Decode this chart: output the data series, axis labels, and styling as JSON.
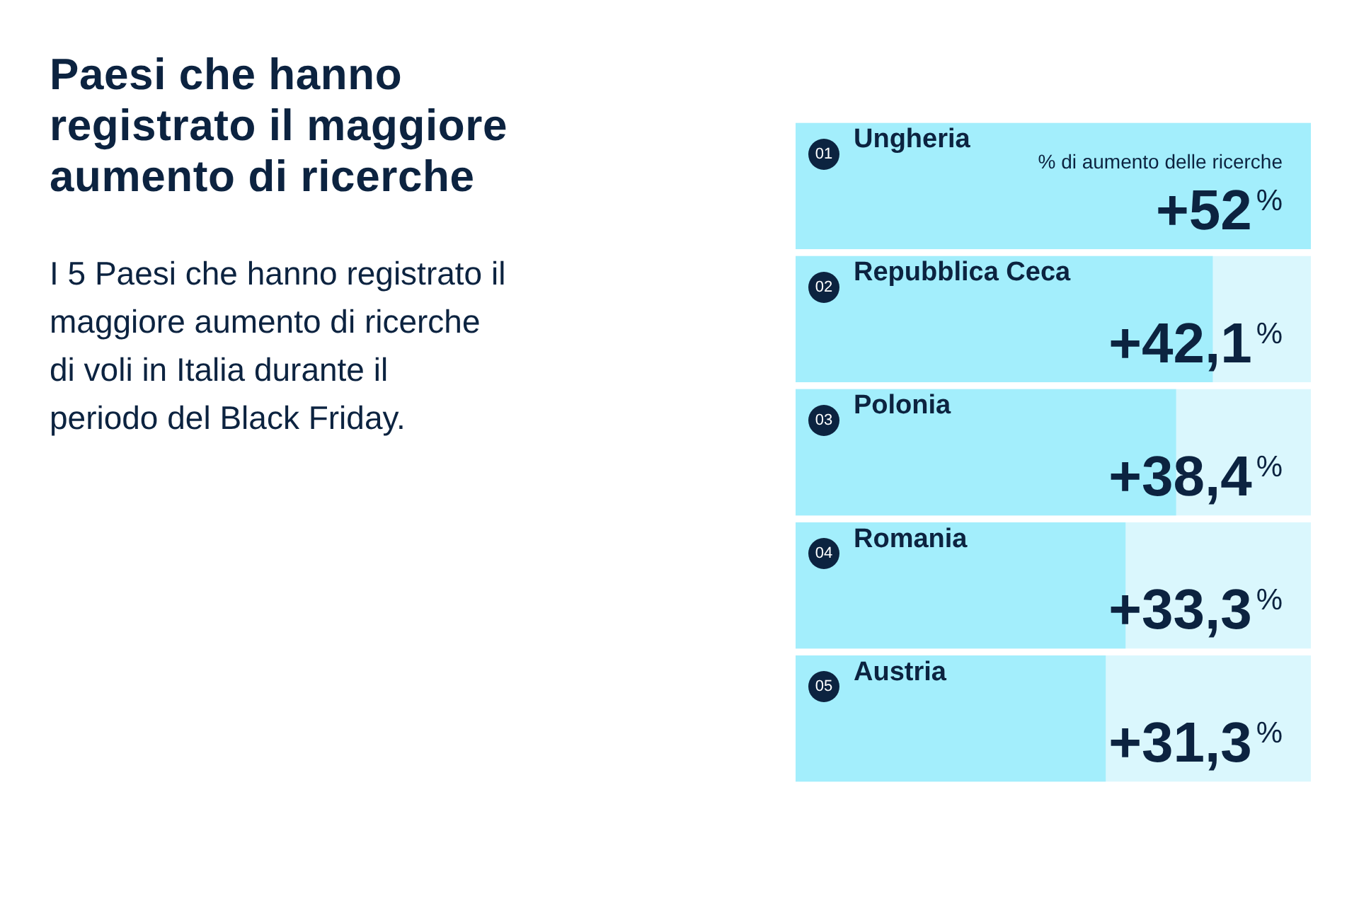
{
  "chart_data": {
    "type": "bar",
    "orientation": "horizontal",
    "title": "Paesi che hanno registrato il maggiore aumento di ricerche",
    "subtitle": "I 5 Paesi che hanno registrato il\nmaggiore aumento di ricerche\ndi voli in Italia durante il\nperiodo del Black Friday.",
    "xlabel": "% di aumento delle ricerche",
    "categories": [
      "Ungheria",
      "Repubblica Ceca",
      "Polonia",
      "Romania",
      "Austria"
    ],
    "values": [
      52,
      42.1,
      38.4,
      33.3,
      31.3
    ],
    "color": "#a3eefc",
    "value_labels": [
      "+52$^{%}$",
      "+42,1$^{%}$",
      "+38,4$^{%}$",
      "+33,3$^{%}$",
      "+31,3$^{%}$"
    ],
    "xlim": [
      0,
      52
    ],
    "tick_labels": "y",
    "annotations": [
      "01",
      "02",
      "03",
      "04",
      "05"
    ]
  }
}
